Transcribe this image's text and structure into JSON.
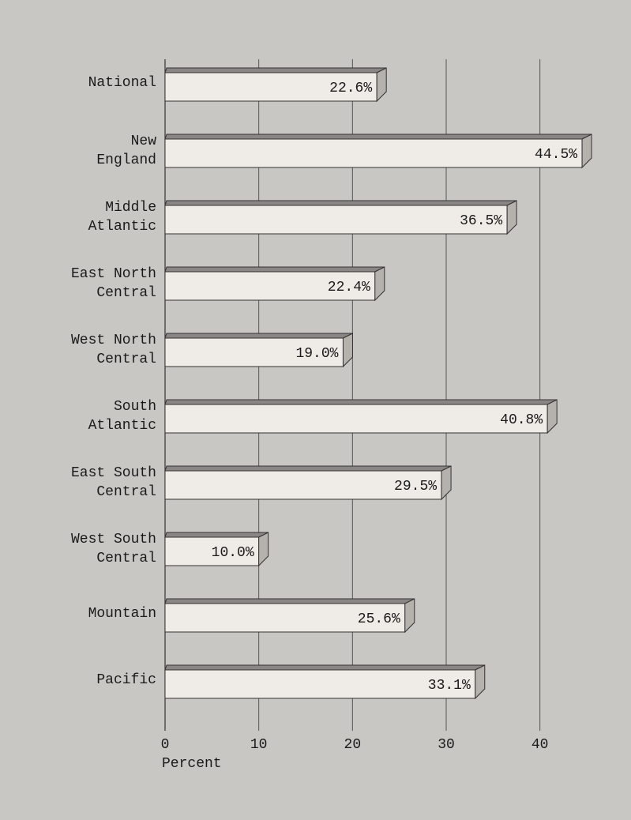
{
  "chart_data": {
    "type": "bar",
    "orientation": "horizontal",
    "categories": [
      [
        "National"
      ],
      [
        "New",
        "England"
      ],
      [
        "Middle",
        "Atlantic"
      ],
      [
        "East North",
        "Central"
      ],
      [
        "West North",
        "Central"
      ],
      [
        "South",
        "Atlantic"
      ],
      [
        "East South",
        "Central"
      ],
      [
        "West South",
        "Central"
      ],
      [
        "Mountain"
      ],
      [
        "Pacific"
      ]
    ],
    "values": [
      22.6,
      44.5,
      36.5,
      22.4,
      19.0,
      40.8,
      29.5,
      10.0,
      25.6,
      33.1
    ],
    "value_labels": [
      "22.6%",
      "44.5%",
      "36.5%",
      "22.4%",
      "19.0%",
      "40.8%",
      "29.5%",
      "10.0%",
      "25.6%",
      "33.1%"
    ],
    "color": "#efebe6",
    "xlabel": "Percent",
    "xlim": [
      0,
      45
    ],
    "xticks": [
      0,
      10,
      20,
      30,
      40
    ],
    "grid": true
  }
}
